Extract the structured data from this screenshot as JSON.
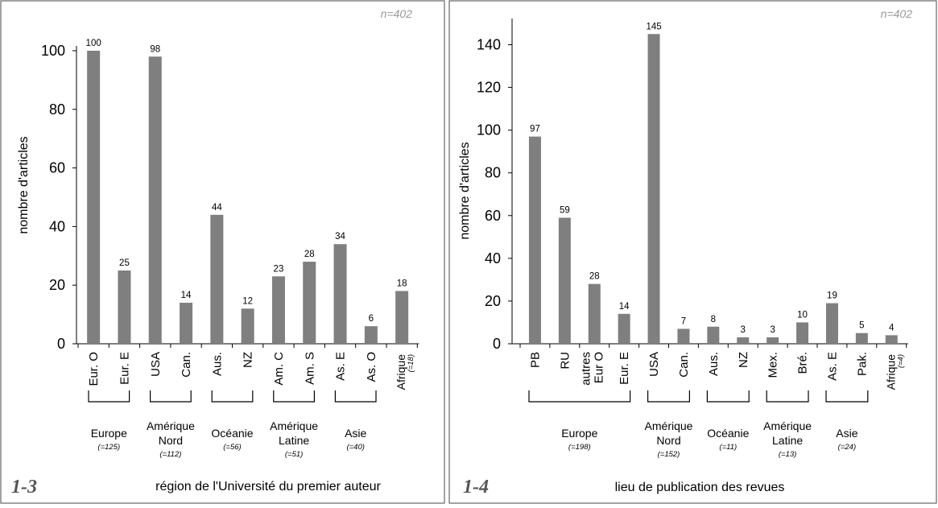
{
  "chart_data": [
    {
      "type": "bar",
      "figure_number": "1-3",
      "xlabel": "région de l'Université du premier auteur",
      "ylabel": "nombre d'articles",
      "annotation": "n=402",
      "ylim": [
        0,
        100
      ],
      "yticks": [
        0,
        20,
        40,
        60,
        80,
        100
      ],
      "categories": [
        "Eur. O",
        "Eur. E",
        "USA",
        "Can.",
        "Aus.",
        "NZ",
        "Am. C",
        "Am. S",
        "As. E",
        "As. O",
        ""
      ],
      "values": [
        100,
        25,
        98,
        14,
        44,
        12,
        23,
        28,
        34,
        6,
        18
      ],
      "groups": [
        {
          "name": "Europe",
          "n": "(=125)"
        },
        {
          "name": "Amérique Nord",
          "n": "(=112)"
        },
        {
          "name": "Océanie",
          "n": "(=56)"
        },
        {
          "name": "Amérique Latine",
          "n": "(=51)"
        },
        {
          "name": "Asie",
          "n": "(=40)"
        },
        {
          "name": "Afrique",
          "n": "(=18)"
        }
      ]
    },
    {
      "type": "bar",
      "figure_number": "1-4",
      "xlabel": "lieu de publication des revues",
      "ylabel": "nombre d'articles",
      "annotation": "n=402",
      "ylim": [
        0,
        150
      ],
      "yticks": [
        0,
        20,
        40,
        60,
        80,
        100,
        120,
        140
      ],
      "categories": [
        "PB",
        "RU",
        "autres Eur O",
        "Eur. E",
        "USA",
        "Can.",
        "Aus.",
        "NZ",
        "Mex.",
        "Bré.",
        "As. E",
        "Pak.",
        ""
      ],
      "values": [
        97,
        59,
        28,
        14,
        145,
        7,
        8,
        3,
        3,
        10,
        19,
        5,
        4
      ],
      "groups": [
        {
          "name": "Europe",
          "n": "(=198)"
        },
        {
          "name": "Amérique Nord",
          "n": "(=152)"
        },
        {
          "name": "Océanie",
          "n": "(=11)"
        },
        {
          "name": "Amérique Latine",
          "n": "(=13)"
        },
        {
          "name": "Asie",
          "n": "(=24)"
        },
        {
          "name": "Afrique",
          "n": "(=4)"
        }
      ]
    }
  ],
  "colors": {
    "bar": "#7f7f7f",
    "axis": "#000000",
    "annotation": "#9a9a9a",
    "frame": "#555555"
  }
}
